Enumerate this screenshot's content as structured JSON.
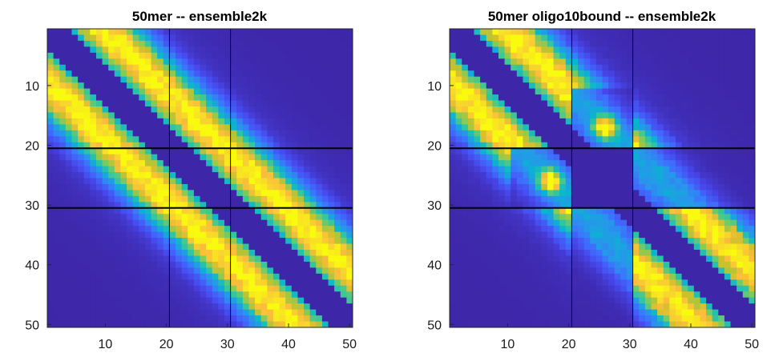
{
  "chart_data": [
    {
      "type": "heatmap",
      "title": "50mer -- ensemble2k",
      "xlabel": "",
      "ylabel": "",
      "xlim": [
        1,
        50
      ],
      "ylim": [
        1,
        50
      ],
      "y_reversed": true,
      "xticks": [
        10,
        20,
        30,
        40,
        50
      ],
      "yticks": [
        10,
        20,
        30,
        40,
        50
      ],
      "xtick_labels": [
        "10",
        "20",
        "30",
        "40",
        "50"
      ],
      "ytick_labels": [
        "10",
        "20",
        "30",
        "40",
        "50"
      ],
      "colormap": "parula",
      "guide_lines": {
        "vertical_thin": [
          20.5,
          30.5
        ],
        "horizontal_thick": [
          20.5,
          30.5
        ]
      },
      "pattern": "symmetric contact map, two diagonal stripes peaking ~0.85 near |i-j|=7-12, empty main diagonal band",
      "oligo_bound": false
    },
    {
      "type": "heatmap",
      "title": "50mer oligo10bound -- ensemble2k",
      "xlabel": "",
      "ylabel": "",
      "xlim": [
        1,
        50
      ],
      "ylim": [
        1,
        50
      ],
      "y_reversed": true,
      "xticks": [
        10,
        20,
        30,
        40,
        50
      ],
      "yticks": [
        10,
        20,
        30,
        40,
        50
      ],
      "xtick_labels": [
        "10",
        "20",
        "30",
        "40",
        "50"
      ],
      "ytick_labels": [
        "10",
        "20",
        "30",
        "40",
        "50"
      ],
      "colormap": "parula",
      "guide_lines": {
        "vertical_thin": [
          20.5,
          30.5
        ],
        "horizontal_thick": [
          20.5,
          30.5
        ]
      },
      "pattern": "contacts of residues 21-30 suppressed; bright spots near (26,17) and (17,26)",
      "oligo_bound": true
    }
  ],
  "colors": {
    "background": "#ffffff",
    "low": "#3e26a8",
    "mid": "#12bfb9",
    "high": "#f9fb0e",
    "axis": "#262626",
    "guide_line": "#000000"
  }
}
